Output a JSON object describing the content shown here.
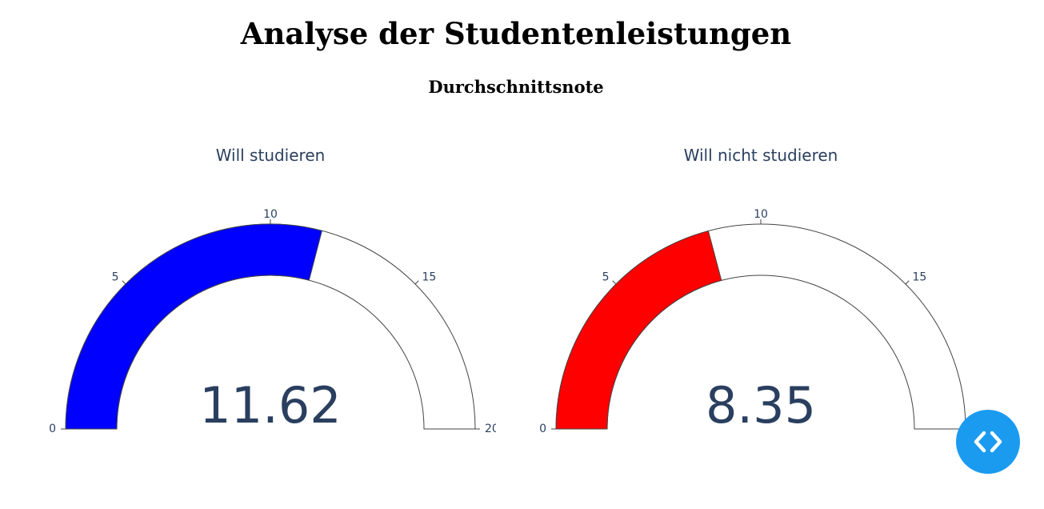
{
  "page": {
    "title": "Analyse der Studentenleistungen",
    "section_title": "Durchschnittsnote"
  },
  "chart_data": [
    {
      "type": "gauge",
      "title": "Will studieren",
      "value": 11.62,
      "value_label": "11.62",
      "range": [
        0,
        20
      ],
      "ticks": [
        0,
        5,
        10,
        15,
        20
      ],
      "tick_labels": [
        "0",
        "5",
        "10",
        "15",
        "20"
      ],
      "bar_color": "#0000ff"
    },
    {
      "type": "gauge",
      "title": "Will nicht studieren",
      "value": 8.35,
      "value_label": "8.35",
      "range": [
        0,
        20
      ],
      "ticks": [
        0,
        5,
        10,
        15
      ],
      "tick_labels": [
        "0",
        "5",
        "10",
        "15"
      ],
      "bar_color": "#ff0000"
    }
  ],
  "colors": {
    "text": "#2a3f5f",
    "outline": "#444444",
    "fab": "#1a9bf0"
  },
  "fab": {
    "icon": "code-icon"
  }
}
